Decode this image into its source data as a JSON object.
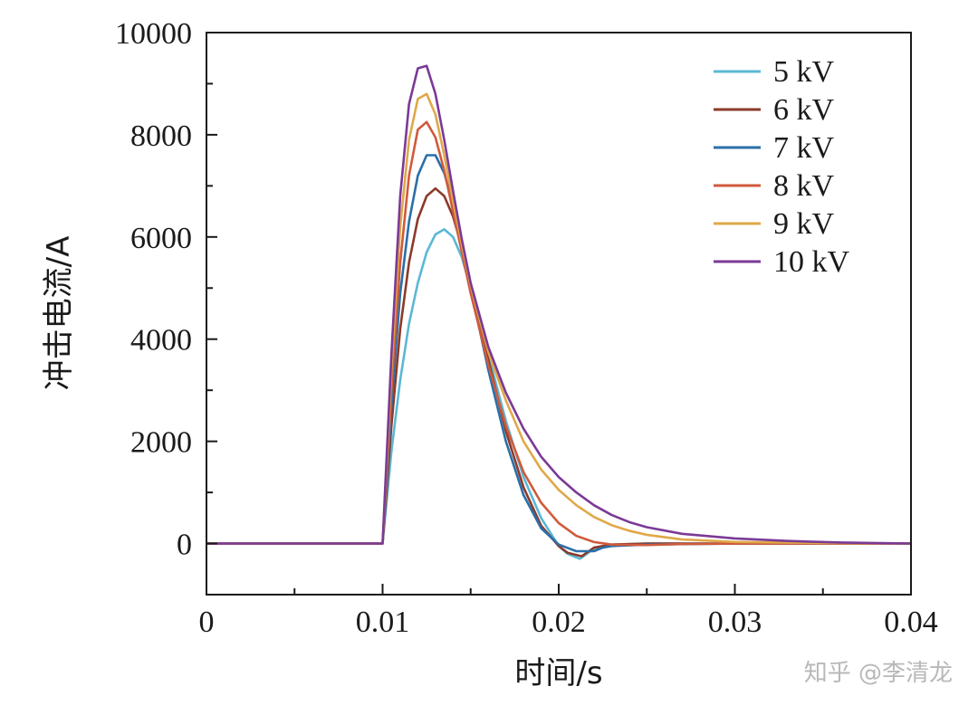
{
  "watermark": "知乎 @李清龙",
  "chart_data": {
    "type": "line",
    "xlabel": "时间/s",
    "ylabel": "冲击电流/A",
    "xlim": [
      0,
      0.04
    ],
    "ylim": [
      -1000,
      10000
    ],
    "xticks": [
      0,
      0.01,
      0.02,
      0.03,
      0.04
    ],
    "xtick_labels": [
      "0",
      "0.01",
      "0.02",
      "0.03",
      "0.04"
    ],
    "yticks": [
      0,
      2000,
      4000,
      6000,
      8000,
      10000
    ],
    "ytick_labels": [
      "0",
      "2000",
      "4000",
      "6000",
      "8000",
      "10000"
    ],
    "grid": false,
    "legend_position": "top-right",
    "series": [
      {
        "name": "5 kV",
        "color": "#5bb8d4",
        "x": [
          0,
          0.01,
          0.0105,
          0.011,
          0.0115,
          0.012,
          0.0125,
          0.013,
          0.0135,
          0.014,
          0.0145,
          0.015,
          0.016,
          0.017,
          0.018,
          0.019,
          0.02,
          0.0205,
          0.0212,
          0.022,
          0.023,
          0.025,
          0.03,
          0.04
        ],
        "y": [
          0,
          0,
          1800,
          3200,
          4300,
          5100,
          5700,
          6050,
          6150,
          6000,
          5600,
          5000,
          3700,
          2400,
          1300,
          500,
          -50,
          -200,
          -300,
          -100,
          -20,
          0,
          0,
          0
        ]
      },
      {
        "name": "6 kV",
        "color": "#8b3a2a",
        "x": [
          0,
          0.01,
          0.0105,
          0.011,
          0.0115,
          0.012,
          0.0125,
          0.013,
          0.0135,
          0.014,
          0.0145,
          0.015,
          0.016,
          0.017,
          0.018,
          0.019,
          0.02,
          0.0205,
          0.0213,
          0.022,
          0.023,
          0.025,
          0.03,
          0.04
        ],
        "y": [
          0,
          0,
          2300,
          4200,
          5500,
          6350,
          6800,
          6950,
          6800,
          6400,
          5800,
          5050,
          3600,
          2200,
          1100,
          350,
          -50,
          -180,
          -250,
          -80,
          -20,
          0,
          0,
          0
        ]
      },
      {
        "name": "7 kV",
        "color": "#2a6fa8",
        "x": [
          0,
          0.01,
          0.0105,
          0.011,
          0.0115,
          0.012,
          0.0125,
          0.013,
          0.0135,
          0.014,
          0.0145,
          0.015,
          0.016,
          0.017,
          0.018,
          0.019,
          0.02,
          0.021,
          0.022,
          0.0225,
          0.023,
          0.025,
          0.03,
          0.04
        ],
        "y": [
          0,
          0,
          2700,
          4900,
          6300,
          7200,
          7600,
          7600,
          7250,
          6650,
          5900,
          5000,
          3400,
          2000,
          950,
          300,
          -20,
          -150,
          -150,
          -80,
          -50,
          -20,
          0,
          0
        ]
      },
      {
        "name": "8 kV",
        "color": "#d05a3c",
        "x": [
          0,
          0.01,
          0.0105,
          0.011,
          0.0115,
          0.012,
          0.0125,
          0.013,
          0.0135,
          0.014,
          0.0145,
          0.015,
          0.016,
          0.017,
          0.018,
          0.019,
          0.02,
          0.021,
          0.022,
          0.023,
          0.025,
          0.027,
          0.03,
          0.035,
          0.04
        ],
        "y": [
          0,
          0,
          3000,
          5500,
          7200,
          8100,
          8250,
          7950,
          7300,
          6500,
          5700,
          4900,
          3500,
          2300,
          1400,
          800,
          400,
          150,
          30,
          -20,
          -30,
          -10,
          0,
          0,
          0
        ]
      },
      {
        "name": "9 kV",
        "color": "#e0a848",
        "x": [
          0,
          0.01,
          0.0105,
          0.011,
          0.0115,
          0.012,
          0.0125,
          0.013,
          0.0135,
          0.014,
          0.0145,
          0.015,
          0.016,
          0.017,
          0.018,
          0.019,
          0.02,
          0.021,
          0.022,
          0.023,
          0.024,
          0.025,
          0.027,
          0.03,
          0.035,
          0.04
        ],
        "y": [
          0,
          0,
          3400,
          6200,
          7900,
          8700,
          8800,
          8400,
          7600,
          6700,
          5850,
          5050,
          3750,
          2800,
          2000,
          1450,
          1050,
          750,
          520,
          360,
          250,
          170,
          80,
          30,
          10,
          0
        ]
      },
      {
        "name": "10 kV",
        "color": "#7b3a96",
        "x": [
          0,
          0.01,
          0.0105,
          0.011,
          0.0115,
          0.012,
          0.0125,
          0.013,
          0.0135,
          0.014,
          0.0145,
          0.015,
          0.016,
          0.017,
          0.018,
          0.019,
          0.02,
          0.021,
          0.022,
          0.023,
          0.024,
          0.025,
          0.027,
          0.03,
          0.033,
          0.036,
          0.04
        ],
        "y": [
          0,
          0,
          3700,
          6800,
          8600,
          9300,
          9350,
          8800,
          7900,
          6900,
          5950,
          5100,
          3850,
          2950,
          2250,
          1700,
          1300,
          1000,
          750,
          560,
          420,
          320,
          190,
          100,
          50,
          20,
          0
        ]
      }
    ]
  }
}
